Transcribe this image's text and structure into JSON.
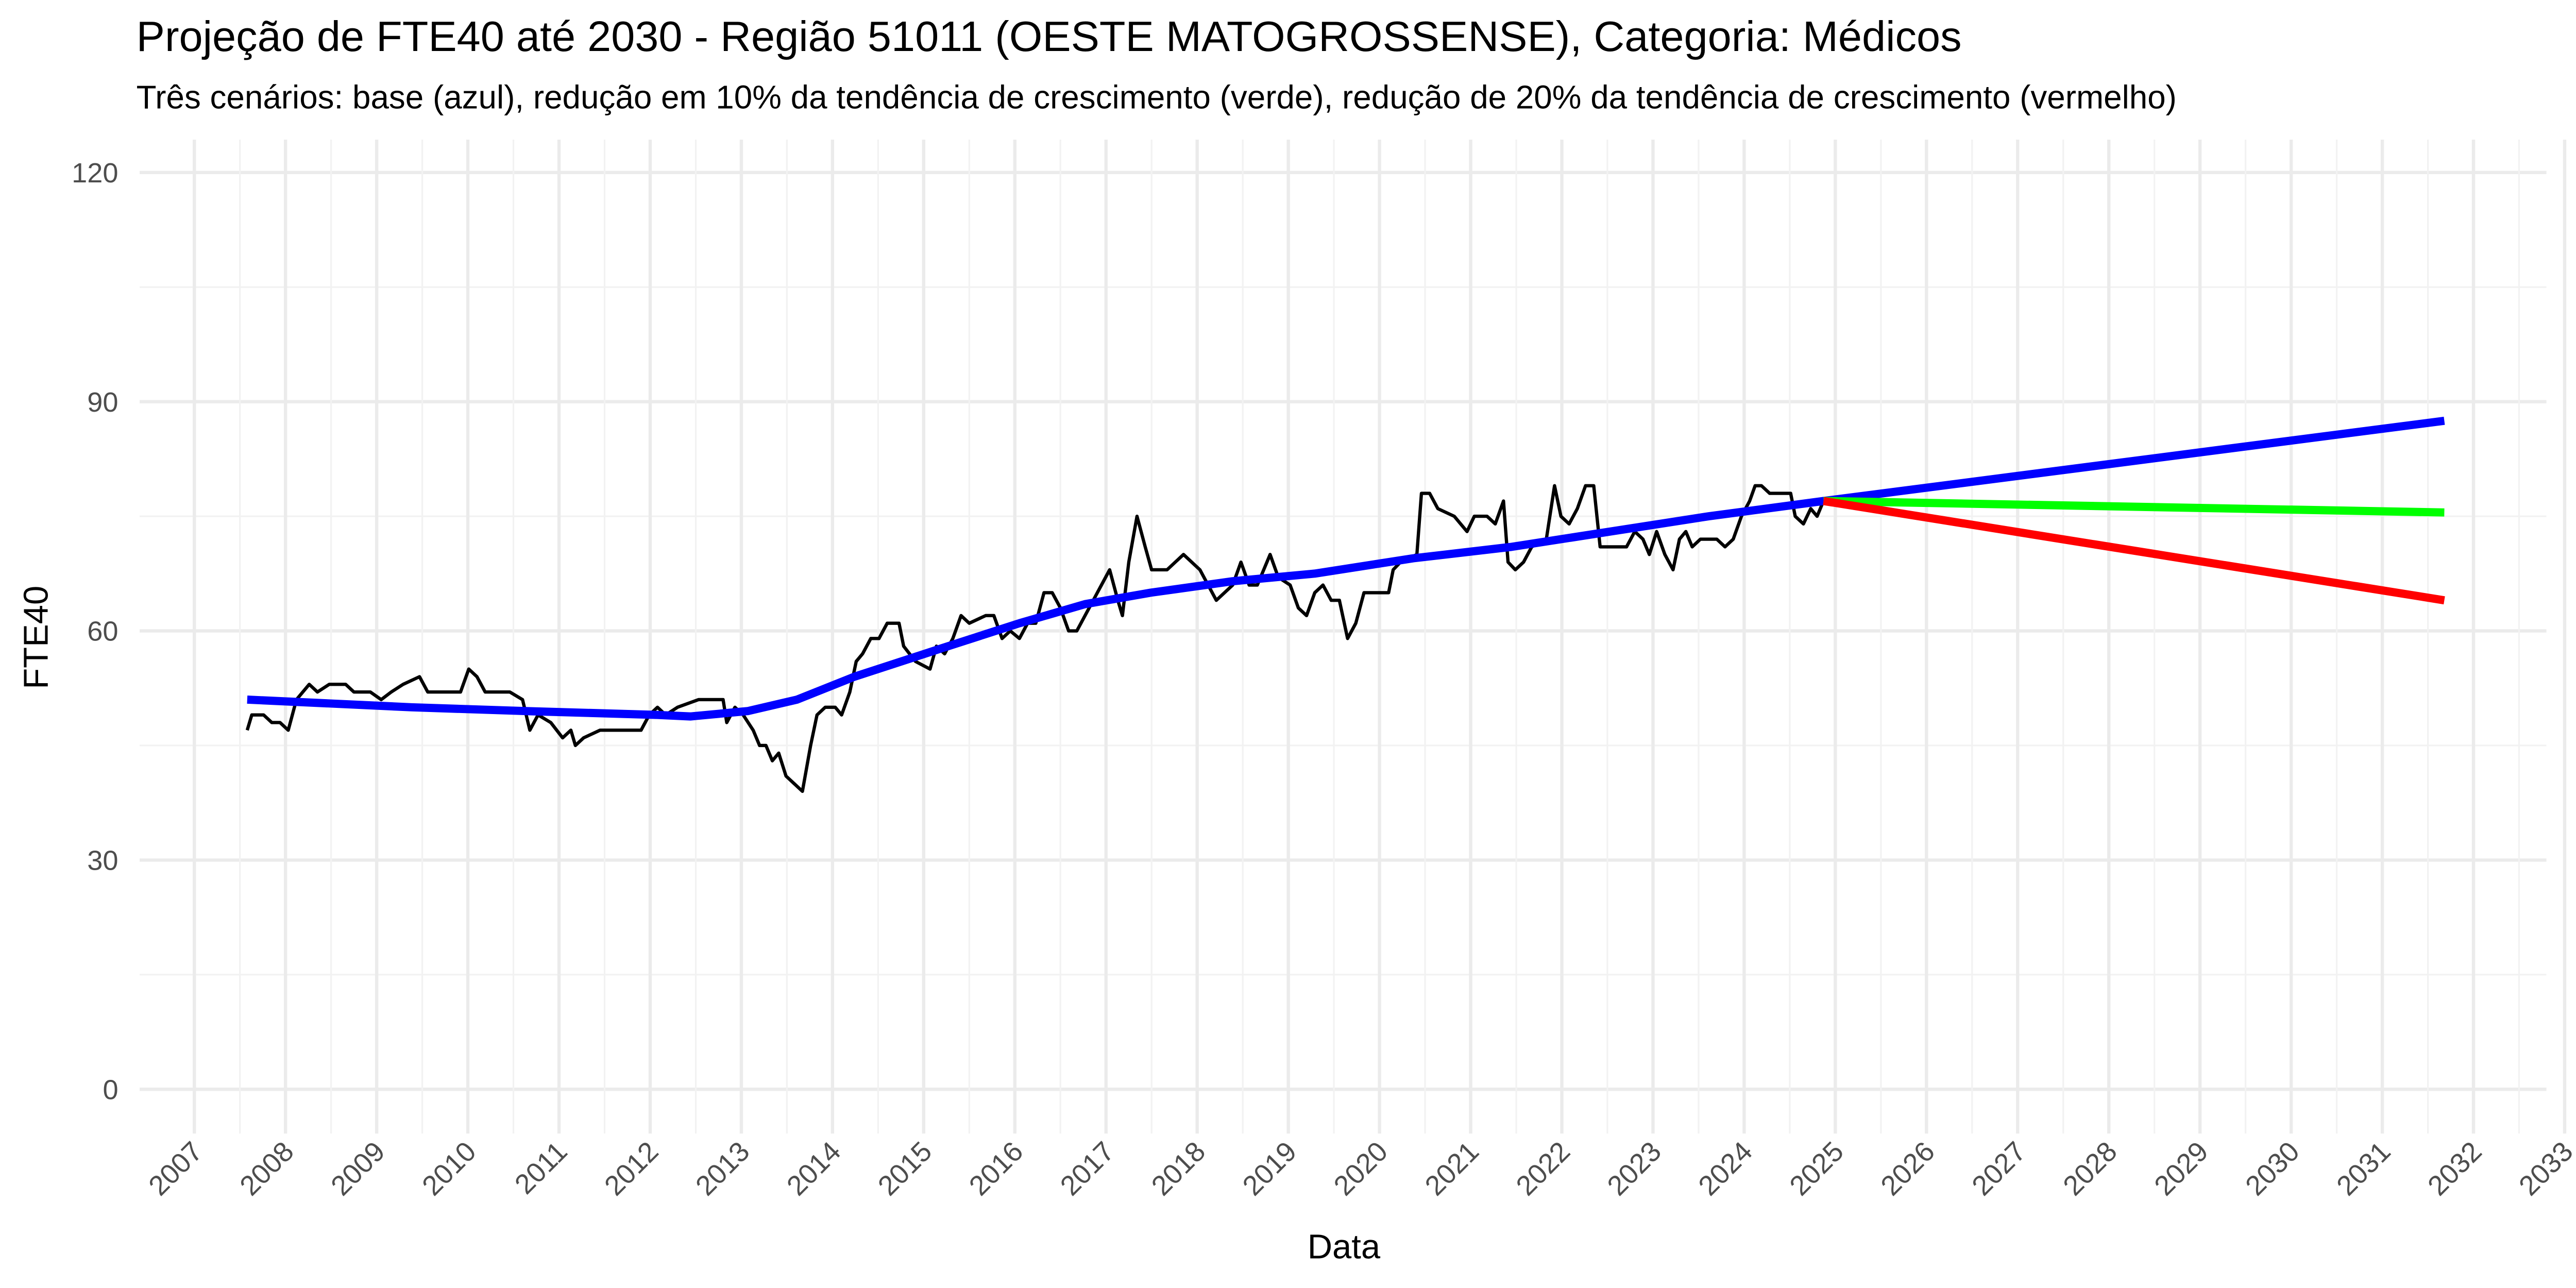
{
  "chart_data": {
    "type": "line",
    "title": "Projeção de FTE40 até 2030 - Região 51011 (OESTE MATOGROSSENSE), Categoria: Médicos",
    "subtitle": "Três cenários: base (azul), redução em 10% da tendência de crescimento (verde), redução de 20% da tendência de crescimento (vermelho)",
    "x_label": "Data",
    "y_label": "FTE40",
    "xlim": [
      2006.4,
      2032.8
    ],
    "ylim": [
      -5.8,
      124.3
    ],
    "xticks": [
      2007,
      2008,
      2009,
      2010,
      2011,
      2012,
      2013,
      2014,
      2015,
      2016,
      2017,
      2018,
      2019,
      2020,
      2021,
      2022,
      2023,
      2024,
      2025,
      2026,
      2027,
      2028,
      2029,
      2030,
      2031,
      2032,
      2033
    ],
    "yticks": [
      0,
      30,
      60,
      90,
      120
    ],
    "grid": true,
    "series": [
      {
        "color": "#000000",
        "x": [
          2007.58,
          2007.63,
          2007.76,
          2007.85,
          2007.94,
          2008.03,
          2008.12,
          2008.26,
          2008.35,
          2008.48,
          2008.66,
          2008.75,
          2008.93,
          2009.05,
          2009.16,
          2009.29,
          2009.47,
          2009.56,
          2009.74,
          2009.92,
          2010.01,
          2010.1,
          2010.19,
          2010.46,
          2010.6,
          2010.68,
          2010.77,
          2010.91,
          2011.04,
          2011.13,
          2011.18,
          2011.27,
          2011.45,
          2011.9,
          2011.99,
          2012.08,
          2012.17,
          2012.3,
          2012.53,
          2012.8,
          2012.84,
          2012.93,
          2013.02,
          2013.13,
          2013.2,
          2013.27,
          2013.34,
          2013.41,
          2013.49,
          2013.58,
          2013.67,
          2013.76,
          2013.83,
          2013.92,
          2014.03,
          2014.1,
          2014.19,
          2014.26,
          2014.33,
          2014.42,
          2014.51,
          2014.6,
          2014.73,
          2014.78,
          2014.91,
          2015.07,
          2015.14,
          2015.23,
          2015.32,
          2015.41,
          2015.5,
          2015.68,
          2015.77,
          2015.86,
          2015.95,
          2016.05,
          2016.14,
          2016.23,
          2016.32,
          2016.41,
          2016.5,
          2016.59,
          2016.68,
          2016.77,
          2016.86,
          2016.95,
          2017.04,
          2017.13,
          2017.18,
          2017.25,
          2017.34,
          2017.43,
          2017.5,
          2017.67,
          2017.85,
          2018.03,
          2018.21,
          2018.39,
          2018.48,
          2018.57,
          2018.66,
          2018.8,
          2018.89,
          2019.02,
          2019.11,
          2019.2,
          2019.29,
          2019.38,
          2019.47,
          2019.56,
          2019.65,
          2019.74,
          2019.83,
          2020.1,
          2020.15,
          2020.23,
          2020.41,
          2020.46,
          2020.55,
          2020.64,
          2020.82,
          2020.96,
          2021.04,
          2021.18,
          2021.27,
          2021.36,
          2021.41,
          2021.49,
          2021.58,
          2021.67,
          2021.83,
          2021.92,
          2021.99,
          2022.08,
          2022.17,
          2022.26,
          2022.35,
          2022.42,
          2022.71,
          2022.8,
          2022.89,
          2022.96,
          2023.04,
          2023.13,
          2023.22,
          2023.29,
          2023.36,
          2023.43,
          2023.52,
          2023.7,
          2023.79,
          2023.88,
          2023.97,
          2024.06,
          2024.12,
          2024.19,
          2024.28,
          2024.51,
          2024.56,
          2024.65,
          2024.73,
          2024.8,
          2024.87
        ],
        "values": [
          47,
          49,
          49,
          48,
          48,
          47,
          51,
          53,
          52,
          53,
          53,
          52,
          52,
          51,
          52,
          53,
          54,
          52,
          52,
          52,
          55,
          54,
          52,
          52,
          51,
          47,
          49,
          48,
          46,
          47,
          45,
          46,
          47,
          47,
          49,
          50,
          49,
          50,
          51,
          51,
          48,
          50,
          49,
          47,
          45,
          45,
          43,
          44,
          41,
          40,
          39,
          45,
          49,
          50,
          50,
          49,
          52,
          56,
          57,
          59,
          59,
          61,
          61,
          58,
          56,
          55,
          58,
          57,
          59,
          62,
          61,
          62,
          62,
          59,
          60,
          59,
          61,
          61,
          65,
          65,
          63,
          60,
          60,
          62,
          64,
          66,
          68,
          64,
          62,
          69,
          75,
          71,
          68,
          68,
          70,
          68,
          64,
          66,
          69,
          66,
          66,
          70,
          67,
          66,
          63,
          62,
          65,
          66,
          64,
          64,
          59,
          61,
          65,
          65,
          68,
          69,
          70,
          78,
          78,
          76,
          75,
          73,
          75,
          75,
          74,
          77,
          69,
          68,
          69,
          71,
          72,
          79,
          75,
          74,
          76,
          79,
          79,
          71,
          71,
          73,
          72,
          70,
          73,
          70,
          68,
          72,
          73,
          71,
          72,
          72,
          71,
          72,
          75,
          77,
          79,
          79,
          78,
          78,
          75,
          74,
          76,
          75,
          77
        ]
      },
      {
        "color": "#0000ff",
        "x": [
          2007.58,
          2009.38,
          2010.64,
          2012.08,
          2012.44,
          2013.07,
          2013.61,
          2014.24,
          2015.14,
          2016.05,
          2016.77,
          2017.49,
          2018.39,
          2019.29,
          2020.37,
          2021.45,
          2022.53,
          2023.61,
          2024.87,
          2031.68
        ],
        "values": [
          51,
          50,
          49.5,
          49,
          48.8,
          49.5,
          51,
          54,
          57.5,
          61,
          63.5,
          65,
          66.5,
          67.5,
          69.5,
          71,
          73,
          75,
          77,
          87.5
        ]
      },
      {
        "color": "#00ff00",
        "x": [
          2024.87,
          2031.68
        ],
        "values": [
          77,
          75.5
        ]
      },
      {
        "color": "#ff0000",
        "x": [
          2024.87,
          2031.68
        ],
        "values": [
          77,
          64
        ]
      }
    ]
  }
}
